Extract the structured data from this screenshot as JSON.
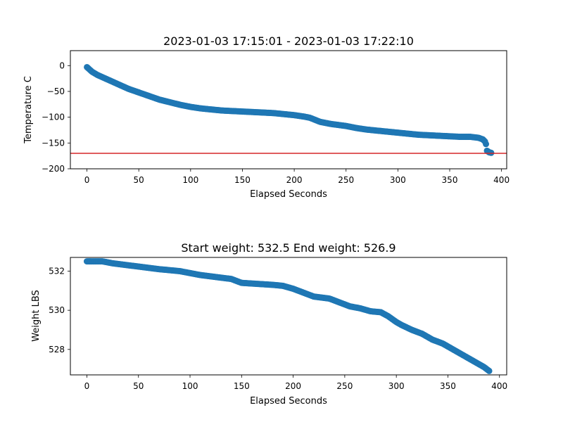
{
  "chart_data": [
    {
      "type": "scatter",
      "title": "2023-01-03 17:15:01 - 2023-01-03 17:22:10",
      "xlabel": "Elapsed Seconds",
      "ylabel": "Temperature C",
      "xlim": [
        -16,
        405
      ],
      "ylim": [
        -200,
        29
      ],
      "xticks": [
        0,
        50,
        100,
        150,
        200,
        250,
        300,
        350,
        400
      ],
      "yticks": [
        0,
        -50,
        -100,
        -150,
        -200
      ],
      "marker_color": "#1f77b4",
      "reference_line": {
        "y": -170,
        "color": "#d62728"
      },
      "grid": false,
      "curve": [
        [
          0,
          -3
        ],
        [
          5,
          -12
        ],
        [
          10,
          -18
        ],
        [
          20,
          -27
        ],
        [
          30,
          -36
        ],
        [
          40,
          -45
        ],
        [
          50,
          -52
        ],
        [
          60,
          -59
        ],
        [
          70,
          -66
        ],
        [
          80,
          -71
        ],
        [
          90,
          -76
        ],
        [
          100,
          -80
        ],
        [
          110,
          -83
        ],
        [
          120,
          -85
        ],
        [
          130,
          -87
        ],
        [
          140,
          -88
        ],
        [
          150,
          -89
        ],
        [
          160,
          -90
        ],
        [
          170,
          -91
        ],
        [
          180,
          -92
        ],
        [
          190,
          -94
        ],
        [
          200,
          -96
        ],
        [
          210,
          -99
        ],
        [
          215,
          -101
        ],
        [
          220,
          -105
        ],
        [
          225,
          -109
        ],
        [
          235,
          -113
        ],
        [
          250,
          -117
        ],
        [
          260,
          -121
        ],
        [
          270,
          -124
        ],
        [
          280,
          -126
        ],
        [
          290,
          -128
        ],
        [
          300,
          -130
        ],
        [
          310,
          -132
        ],
        [
          320,
          -134
        ],
        [
          330,
          -135
        ],
        [
          340,
          -136
        ],
        [
          350,
          -137
        ],
        [
          360,
          -138
        ],
        [
          370,
          -138
        ],
        [
          378,
          -140
        ],
        [
          382,
          -143
        ],
        [
          384,
          -147
        ],
        [
          385,
          -152
        ],
        [
          386,
          -165
        ],
        [
          388,
          -168
        ],
        [
          390,
          -169
        ]
      ]
    },
    {
      "type": "scatter",
      "title": "Start weight: 532.5 End weight: 526.9",
      "xlabel": "Elapsed Seconds",
      "ylabel": "Weight LBS",
      "xlim": [
        -16,
        407
      ],
      "ylim": [
        526.7,
        532.7
      ],
      "xticks": [
        0,
        50,
        100,
        150,
        200,
        250,
        300,
        350,
        400
      ],
      "yticks": [
        528,
        530,
        532
      ],
      "marker_color": "#1f77b4",
      "grid": false,
      "curve": [
        [
          0,
          532.5
        ],
        [
          15,
          532.5
        ],
        [
          25,
          532.4
        ],
        [
          40,
          532.3
        ],
        [
          55,
          532.2
        ],
        [
          70,
          532.1
        ],
        [
          90,
          532.0
        ],
        [
          100,
          531.9
        ],
        [
          110,
          531.8
        ],
        [
          125,
          531.7
        ],
        [
          140,
          531.6
        ],
        [
          150,
          531.4
        ],
        [
          165,
          531.35
        ],
        [
          180,
          531.3
        ],
        [
          190,
          531.25
        ],
        [
          200,
          531.1
        ],
        [
          210,
          530.9
        ],
        [
          220,
          530.7
        ],
        [
          235,
          530.6
        ],
        [
          245,
          530.4
        ],
        [
          255,
          530.2
        ],
        [
          265,
          530.1
        ],
        [
          275,
          529.95
        ],
        [
          285,
          529.9
        ],
        [
          292,
          529.7
        ],
        [
          300,
          529.4
        ],
        [
          305,
          529.25
        ],
        [
          315,
          529.0
        ],
        [
          325,
          528.8
        ],
        [
          335,
          528.5
        ],
        [
          345,
          528.3
        ],
        [
          355,
          528.0
        ],
        [
          365,
          527.7
        ],
        [
          375,
          527.4
        ],
        [
          385,
          527.1
        ],
        [
          390,
          526.9
        ]
      ]
    }
  ]
}
